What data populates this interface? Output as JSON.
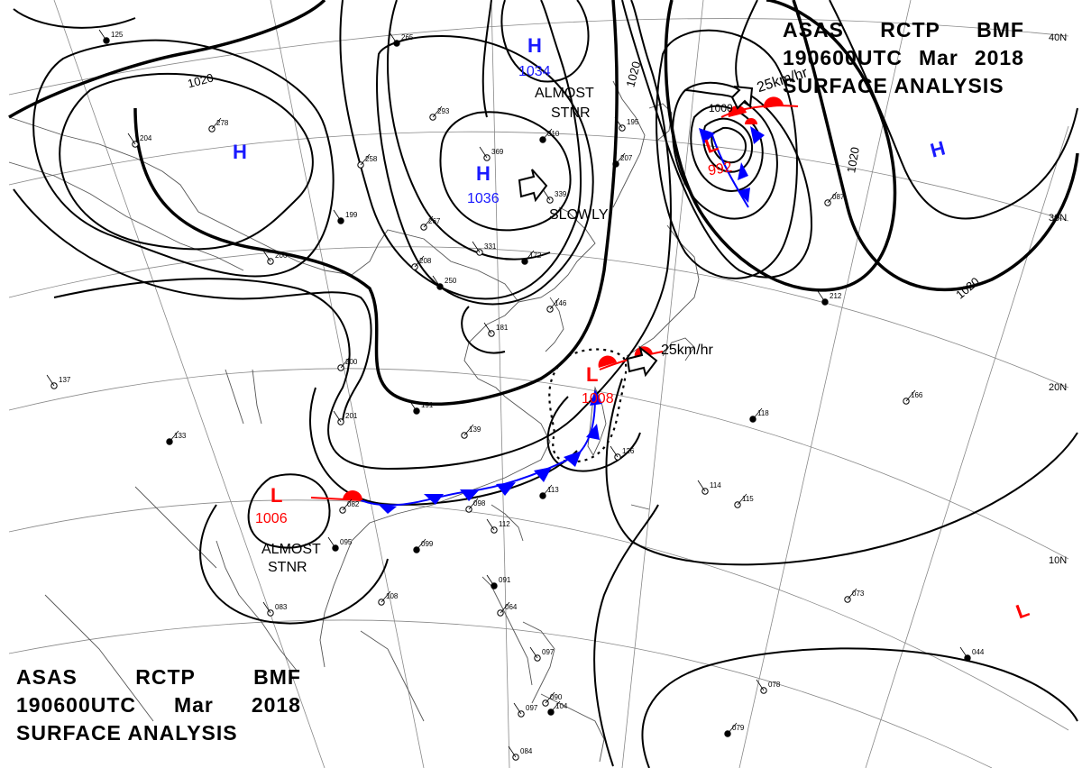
{
  "header": {
    "line1": [
      "ASAS",
      "RCTP",
      "BMF"
    ],
    "line2": [
      "190600UTC",
      "Mar",
      "2018"
    ],
    "line3": "SURFACE ANALYSIS"
  },
  "colors": {
    "isobar": "#000000",
    "high": "#1a1aff",
    "low": "#ff0000",
    "cold_front": "#0000ff",
    "warm_front": "#ff0000"
  },
  "pressure_centers": [
    {
      "id": "high-1034",
      "symbol": "H",
      "value": "1034"
    },
    {
      "id": "high-1036",
      "symbol": "H",
      "value": "1036"
    },
    {
      "id": "high-west",
      "symbol": "H",
      "value": ""
    },
    {
      "id": "high-east",
      "symbol": "H",
      "value": ""
    },
    {
      "id": "low-992",
      "symbol": "L",
      "value": "992"
    },
    {
      "id": "low-1008",
      "symbol": "L",
      "value": "1008"
    },
    {
      "id": "low-1006",
      "symbol": "L",
      "value": "1006"
    },
    {
      "id": "low-southeast",
      "symbol": "L",
      "value": ""
    }
  ],
  "movement_labels": {
    "almost_stnr_1": [
      "ALMOST",
      "STNR"
    ],
    "slowly": "SLOWLY",
    "speed_north": "25km/hr",
    "speed_center": "25km/hr",
    "almost_stnr_2": [
      "ALMOST",
      "STNR"
    ]
  },
  "isobar_labels": [
    "1020",
    "1020",
    "1020",
    "1020",
    "1020",
    "1000"
  ],
  "latitude_labels": [
    "40N",
    "30N",
    "20N",
    "10N"
  ],
  "station_numbers": [
    "265",
    "293",
    "369",
    "310",
    "339",
    "258",
    "199",
    "267",
    "331",
    "172",
    "206",
    "208",
    "250",
    "146",
    "181",
    "207",
    "195",
    "200",
    "191",
    "139",
    "201",
    "113",
    "126",
    "082",
    "095",
    "098",
    "112",
    "099",
    "083",
    "108",
    "091",
    "064",
    "097",
    "104",
    "097",
    "090",
    "044",
    "073",
    "078",
    "079",
    "084",
    "115",
    "212",
    "166",
    "137",
    "133",
    "204",
    "278",
    "125",
    "087",
    "114",
    "118"
  ]
}
